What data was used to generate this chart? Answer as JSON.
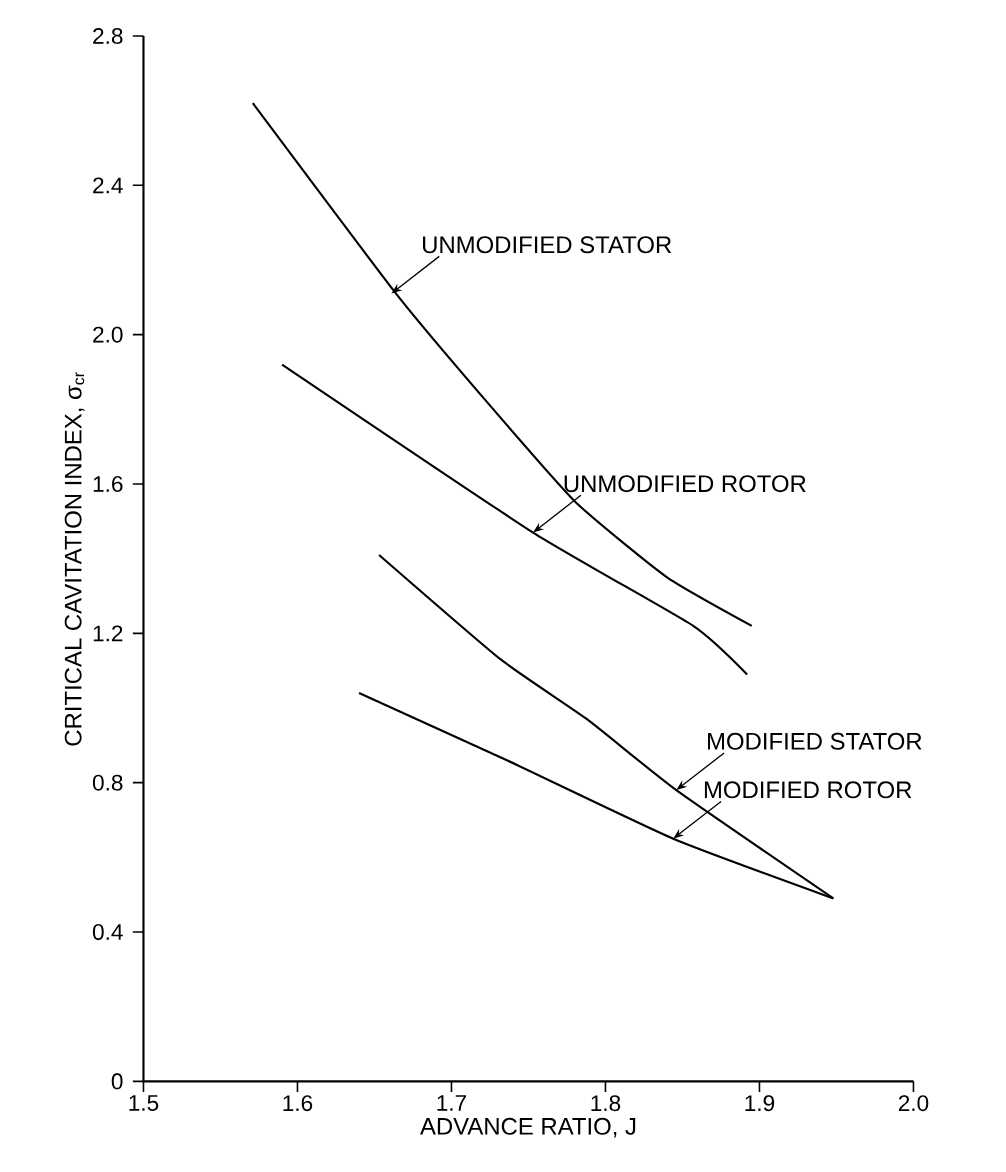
{
  "chart_data": {
    "type": "line",
    "xlabel": "ADVANCE RATIO, J",
    "ylabel": "CRITICAL CAVITATION INDEX, σ$_{cr}$",
    "xlim": [
      1.5,
      2.0
    ],
    "xticks": [
      1.5,
      1.6,
      1.7,
      1.8,
      1.9,
      {
        "value": 2.0,
        "label": "2.0"
      }
    ],
    "ylim": [
      0,
      2.8
    ],
    "yticks": [
      0,
      0.4,
      0.8,
      1.2,
      1.6,
      {
        "value": 2.0,
        "label": "2.0"
      },
      2.4,
      2.8
    ],
    "grid": false,
    "marker": "none",
    "line_style": "solid",
    "series": [
      {
        "color": "#000000",
        "x": [
          1.571,
          1.664,
          1.723,
          1.781,
          1.84,
          1.895
        ],
        "values": [
          2.62,
          2.11,
          1.82,
          1.55,
          1.35,
          1.22
        ]
      },
      {
        "color": "#000000",
        "x": [
          1.59,
          1.753,
          1.857,
          1.892
        ],
        "values": [
          1.92,
          1.47,
          1.22,
          1.09
        ]
      },
      {
        "color": "#000000",
        "x": [
          1.653,
          1.732,
          1.788,
          1.846,
          1.948
        ],
        "values": [
          1.41,
          1.13,
          0.97,
          0.78,
          0.49
        ]
      },
      {
        "color": "#000000",
        "x": [
          1.64,
          1.736,
          1.844,
          1.948
        ],
        "values": [
          1.04,
          0.86,
          0.65,
          0.49
        ]
      }
    ],
    "annotations": [
      {
        "text": "UNMODIFIED STATOR",
        "x": 1.661,
        "y": 2.11
      },
      {
        "text": "UNMODIFIED ROTOR",
        "x": 1.753,
        "y": 1.47
      },
      {
        "text": "MODIFIED STATOR",
        "x": 1.846,
        "y": 0.78
      },
      {
        "text": "MODIFIED ROTOR",
        "x": 1.844,
        "y": 0.65
      }
    ]
  }
}
